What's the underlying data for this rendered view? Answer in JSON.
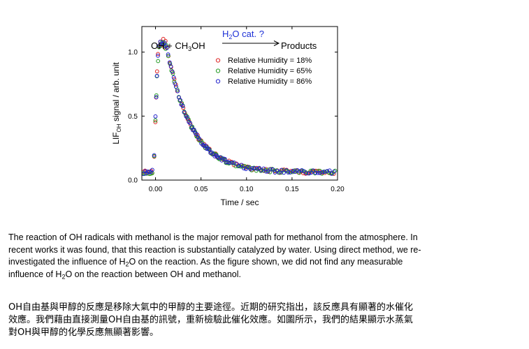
{
  "chart_data": {
    "type": "scatter",
    "xlabel": "Time / sec",
    "ylabel_main": "LIF",
    "ylabel_sub": "OH",
    "ylabel_rest": " signal / arb. unit",
    "xlim": [
      -0.015,
      0.2
    ],
    "ylim": [
      0,
      1.2
    ],
    "x_ticks": [
      0.0,
      0.05,
      0.1,
      0.15,
      0.2
    ],
    "x_tick_labels": [
      "0.00",
      "0.05",
      "0.10",
      "0.15",
      "0.20"
    ],
    "y_ticks": [
      0.0,
      0.5,
      1.0
    ],
    "y_tick_labels": [
      "0.0",
      "0.5",
      "1.0"
    ],
    "legend_position": "top-right",
    "reaction": {
      "left": "OH + CH",
      "left_sub": "3",
      "left_end": "OH",
      "arrow_main": "H",
      "arrow_sub": "2",
      "arrow_rest": "O cat. ?",
      "right": "Products"
    },
    "model": {
      "baseline": 0.06,
      "rise_points": [
        [
          -0.012,
          0.06
        ],
        [
          -0.006,
          0.06
        ],
        [
          -0.002,
          0.07
        ],
        [
          0.0,
          0.5
        ],
        [
          0.002,
          0.9
        ],
        [
          0.004,
          1.05
        ],
        [
          0.008,
          1.08
        ],
        [
          0.012,
          1.05
        ]
      ],
      "decay_start": 0.012,
      "decay_amplitude": 0.99,
      "decay_tau": 0.027,
      "x_end": 0.2
    },
    "series": [
      {
        "name": "Relative Humidity = 18%",
        "color": "#dd2222",
        "seed": 11
      },
      {
        "name": "Relative Humidity = 65%",
        "color": "#229922",
        "seed": 23
      },
      {
        "name": "Relative Humidity = 86%",
        "color": "#2222cc",
        "seed": 37
      }
    ]
  },
  "text": {
    "en": [
      [
        "The reaction of OH radicals with methanol is the major removal path for methanol from the atmosphere. In"
      ],
      [
        "recent works it was found, that this reaction is substantially catalyzed by water. Using direct method,  we re-"
      ],
      [
        "investigated the influence of H",
        "2",
        "O on the reaction. As the figure shown, we did not find any measurable"
      ],
      [
        "influence of H",
        "2",
        "O on the reaction between OH and methanol."
      ]
    ],
    "zh": [
      "OH自由基與甲醇的反應是移除大氣中的甲醇的主要途徑。近期的研究指出，該反應具有顯著的水催化",
      "效應。我們藉由直接測量OH自由基的訊號，重新檢驗此催化效應。如圖所示，我們的結果顯示水蒸氣",
      "對OH與甲醇的化學反應無顯著影響。"
    ]
  }
}
